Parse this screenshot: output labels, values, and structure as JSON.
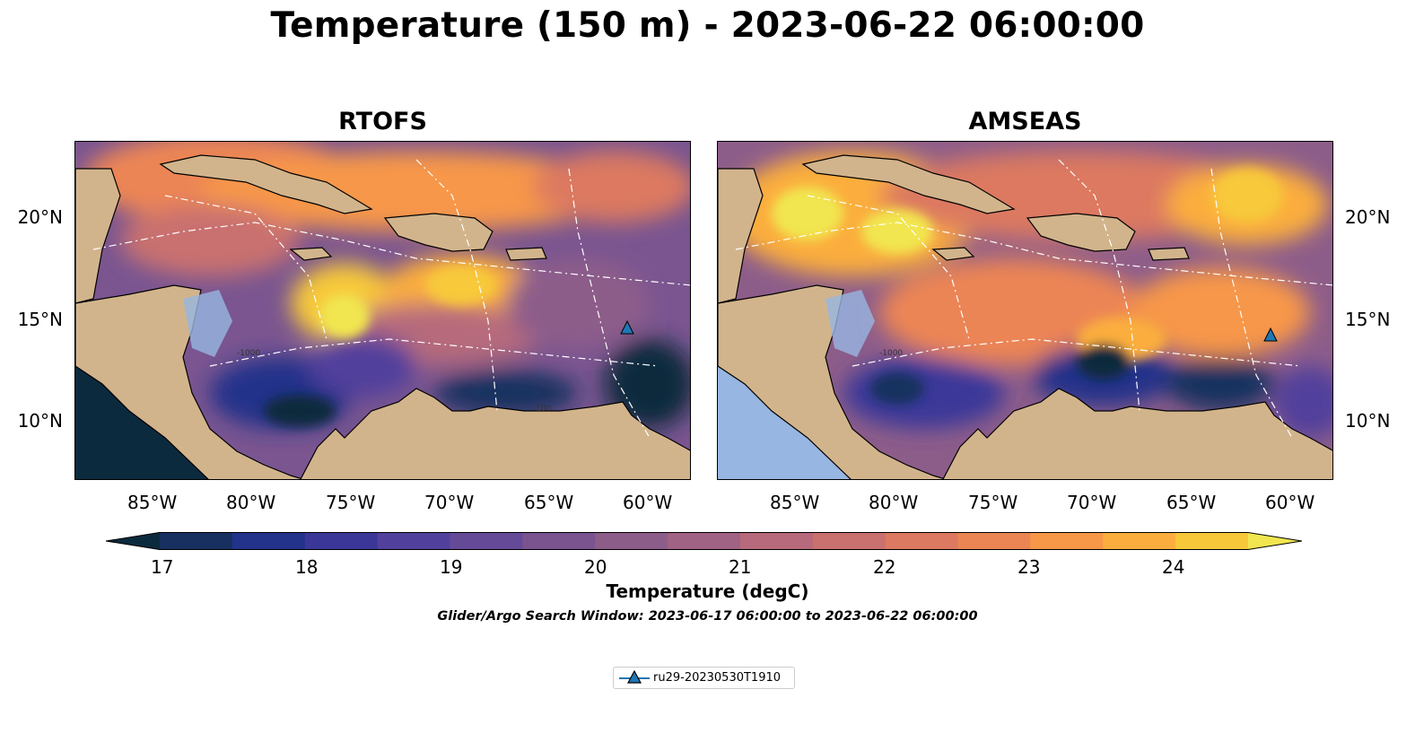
{
  "title": "Temperature (150 m) - 2023-06-22 06:00:00",
  "panels": [
    {
      "title": "RTOFS",
      "y_ticks_side": "left"
    },
    {
      "title": "AMSEAS",
      "y_ticks_side": "right"
    }
  ],
  "x_tick_labels": [
    "85°W",
    "80°W",
    "75°W",
    "70°W",
    "65°W",
    "60°W"
  ],
  "y_tick_labels": [
    "20°N",
    "15°N",
    "10°N"
  ],
  "map_extent": {
    "lon_min": -89,
    "lon_max": -58,
    "lat_min": 7,
    "lat_max": 23.8
  },
  "colorbar": {
    "label": "Temperature (degC)",
    "tick_labels": [
      "17",
      "18",
      "19",
      "20",
      "21",
      "22",
      "23",
      "24"
    ],
    "ticks": [
      17,
      18,
      19,
      20,
      21,
      22,
      23,
      24
    ],
    "min": 17,
    "max": 24.5,
    "step": 0.5,
    "extend": "both",
    "colormap": "thermal",
    "colors": [
      "#0c2a3e",
      "#17305f",
      "#23328a",
      "#3a3799",
      "#51419c",
      "#654b97",
      "#79548f",
      "#8d5d8a",
      "#a16383",
      "#b66a7b",
      "#c9716f",
      "#dc7961",
      "#ec8554",
      "#f79748",
      "#fbae3d",
      "#f7c93a",
      "#f1e64f"
    ]
  },
  "search_window_text": "Glider/Argo Search Window: 2023-06-17 06:00:00 to 2023-06-22 06:00:00",
  "legend": {
    "entries": [
      {
        "label": "ru29-20230530T1910",
        "marker": "triangle-icon",
        "color": "#1f77b4"
      }
    ]
  },
  "contour_labels": [
    "-100",
    "-1000"
  ],
  "colors": {
    "land": "#d2b48c",
    "shallow_water": "#97b6e1",
    "eez_line": "#ffffff",
    "coast": "#000000"
  }
}
